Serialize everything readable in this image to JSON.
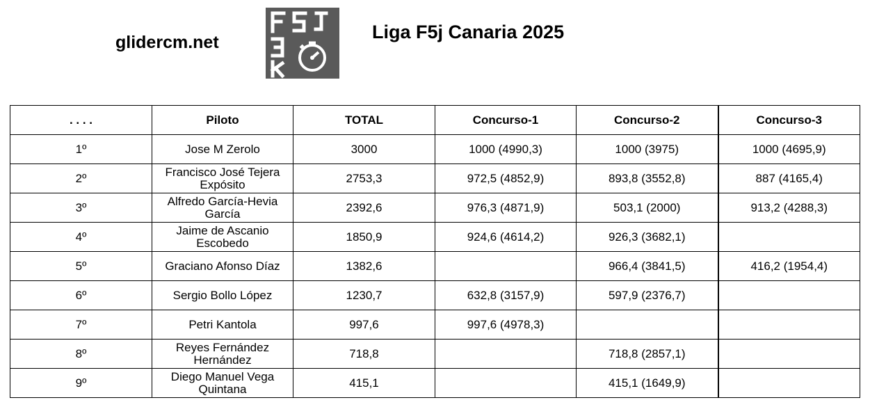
{
  "header": {
    "site": "glidercm.net",
    "title": "Liga F5j Canaria 2025",
    "logo": {
      "line1": "F5J",
      "line2": "3",
      "line3": "K",
      "icon": "stopwatch-icon",
      "bg": "#5a5a5a"
    }
  },
  "table": {
    "columns": [
      ". . . .",
      "Piloto",
      "TOTAL",
      "Concurso-1",
      "Concurso-2",
      "Concurso-3"
    ],
    "rows": [
      [
        "1º",
        "Jose M Zerolo",
        "3000",
        "1000 (4990,3)",
        "1000 (3975)",
        "1000 (4695,9)"
      ],
      [
        "2º",
        "Francisco José Tejera Expósito",
        "2753,3",
        "972,5 (4852,9)",
        "893,8 (3552,8)",
        "887 (4165,4)"
      ],
      [
        "3º",
        "Alfredo García-Hevia García",
        "2392,6",
        "976,3 (4871,9)",
        "503,1 (2000)",
        "913,2 (4288,3)"
      ],
      [
        "4º",
        "Jaime de Ascanio Escobedo",
        "1850,9",
        "924,6 (4614,2)",
        "926,3 (3682,1)",
        ""
      ],
      [
        "5º",
        "Graciano Afonso Díaz",
        "1382,6",
        "",
        "966,4 (3841,5)",
        "416,2 (1954,4)"
      ],
      [
        "6º",
        "Sergio Bollo López",
        "1230,7",
        "632,8 (3157,9)",
        "597,9 (2376,7)",
        ""
      ],
      [
        "7º",
        "Petri Kantola",
        "997,6",
        "997,6 (4978,3)",
        "",
        ""
      ],
      [
        "8º",
        "Reyes Fernández Hernández",
        "718,8",
        "",
        "718,8 (2857,1)",
        ""
      ],
      [
        "9º",
        "Diego Manuel Vega Quintana",
        "415,1",
        "",
        "415,1 (1649,9)",
        ""
      ]
    ]
  }
}
